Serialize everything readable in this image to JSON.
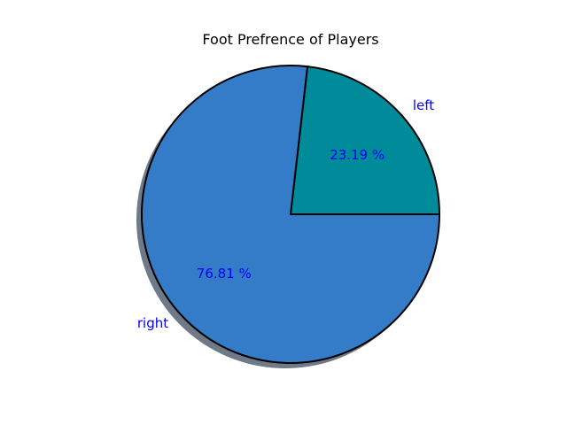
{
  "chart_data": {
    "type": "pie",
    "title": "Foot Prefrence of Players",
    "categories": [
      "left",
      "right"
    ],
    "values": [
      23.19,
      76.81
    ],
    "value_labels": [
      "23.19 %",
      "76.81 %"
    ],
    "colors": [
      "#008b9a",
      "#347bc8"
    ],
    "edge_color": "#000000",
    "label_color": "#0000ff",
    "shadow_color": "#6f7a88",
    "start_angle_deg": 0,
    "direction": "counterclockwise",
    "shadow": true,
    "legend": "none"
  }
}
